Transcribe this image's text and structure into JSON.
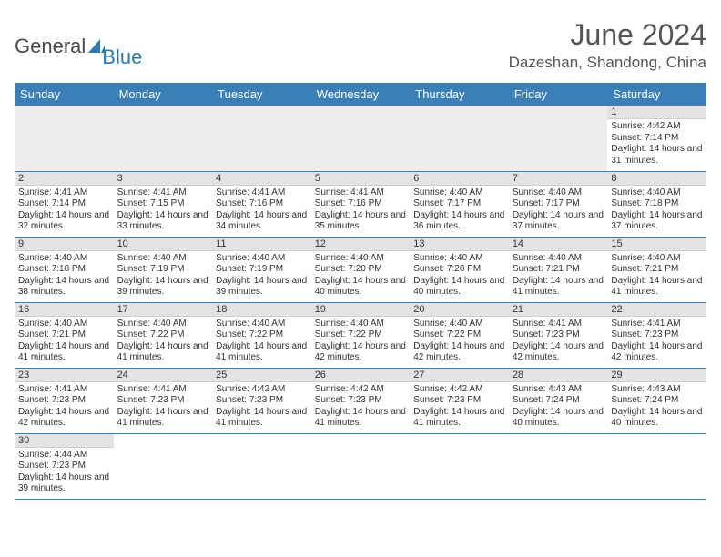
{
  "logo": {
    "text1": "General",
    "text2": "Blue",
    "sail_color": "#2a7ab8"
  },
  "title": "June 2024",
  "location": "Dazeshan, Shandong, China",
  "weekdays": [
    "Sunday",
    "Monday",
    "Tuesday",
    "Wednesday",
    "Thursday",
    "Friday",
    "Saturday"
  ],
  "colors": {
    "header_bg": "#3b7fb8",
    "header_text": "#ffffff",
    "daynum_bg": "#e3e3e3",
    "row_border": "#3b7fb8",
    "title_color": "#555555"
  },
  "grid": [
    [
      null,
      null,
      null,
      null,
      null,
      null,
      {
        "n": "1",
        "sr": "4:42 AM",
        "ss": "7:14 PM",
        "dl": "14 hours and 31 minutes."
      }
    ],
    [
      {
        "n": "2",
        "sr": "4:41 AM",
        "ss": "7:14 PM",
        "dl": "14 hours and 32 minutes."
      },
      {
        "n": "3",
        "sr": "4:41 AM",
        "ss": "7:15 PM",
        "dl": "14 hours and 33 minutes."
      },
      {
        "n": "4",
        "sr": "4:41 AM",
        "ss": "7:16 PM",
        "dl": "14 hours and 34 minutes."
      },
      {
        "n": "5",
        "sr": "4:41 AM",
        "ss": "7:16 PM",
        "dl": "14 hours and 35 minutes."
      },
      {
        "n": "6",
        "sr": "4:40 AM",
        "ss": "7:17 PM",
        "dl": "14 hours and 36 minutes."
      },
      {
        "n": "7",
        "sr": "4:40 AM",
        "ss": "7:17 PM",
        "dl": "14 hours and 37 minutes."
      },
      {
        "n": "8",
        "sr": "4:40 AM",
        "ss": "7:18 PM",
        "dl": "14 hours and 37 minutes."
      }
    ],
    [
      {
        "n": "9",
        "sr": "4:40 AM",
        "ss": "7:18 PM",
        "dl": "14 hours and 38 minutes."
      },
      {
        "n": "10",
        "sr": "4:40 AM",
        "ss": "7:19 PM",
        "dl": "14 hours and 39 minutes."
      },
      {
        "n": "11",
        "sr": "4:40 AM",
        "ss": "7:19 PM",
        "dl": "14 hours and 39 minutes."
      },
      {
        "n": "12",
        "sr": "4:40 AM",
        "ss": "7:20 PM",
        "dl": "14 hours and 40 minutes."
      },
      {
        "n": "13",
        "sr": "4:40 AM",
        "ss": "7:20 PM",
        "dl": "14 hours and 40 minutes."
      },
      {
        "n": "14",
        "sr": "4:40 AM",
        "ss": "7:21 PM",
        "dl": "14 hours and 41 minutes."
      },
      {
        "n": "15",
        "sr": "4:40 AM",
        "ss": "7:21 PM",
        "dl": "14 hours and 41 minutes."
      }
    ],
    [
      {
        "n": "16",
        "sr": "4:40 AM",
        "ss": "7:21 PM",
        "dl": "14 hours and 41 minutes."
      },
      {
        "n": "17",
        "sr": "4:40 AM",
        "ss": "7:22 PM",
        "dl": "14 hours and 41 minutes."
      },
      {
        "n": "18",
        "sr": "4:40 AM",
        "ss": "7:22 PM",
        "dl": "14 hours and 41 minutes."
      },
      {
        "n": "19",
        "sr": "4:40 AM",
        "ss": "7:22 PM",
        "dl": "14 hours and 42 minutes."
      },
      {
        "n": "20",
        "sr": "4:40 AM",
        "ss": "7:22 PM",
        "dl": "14 hours and 42 minutes."
      },
      {
        "n": "21",
        "sr": "4:41 AM",
        "ss": "7:23 PM",
        "dl": "14 hours and 42 minutes."
      },
      {
        "n": "22",
        "sr": "4:41 AM",
        "ss": "7:23 PM",
        "dl": "14 hours and 42 minutes."
      }
    ],
    [
      {
        "n": "23",
        "sr": "4:41 AM",
        "ss": "7:23 PM",
        "dl": "14 hours and 42 minutes."
      },
      {
        "n": "24",
        "sr": "4:41 AM",
        "ss": "7:23 PM",
        "dl": "14 hours and 41 minutes."
      },
      {
        "n": "25",
        "sr": "4:42 AM",
        "ss": "7:23 PM",
        "dl": "14 hours and 41 minutes."
      },
      {
        "n": "26",
        "sr": "4:42 AM",
        "ss": "7:23 PM",
        "dl": "14 hours and 41 minutes."
      },
      {
        "n": "27",
        "sr": "4:42 AM",
        "ss": "7:23 PM",
        "dl": "14 hours and 41 minutes."
      },
      {
        "n": "28",
        "sr": "4:43 AM",
        "ss": "7:24 PM",
        "dl": "14 hours and 40 minutes."
      },
      {
        "n": "29",
        "sr": "4:43 AM",
        "ss": "7:24 PM",
        "dl": "14 hours and 40 minutes."
      }
    ],
    [
      {
        "n": "30",
        "sr": "4:44 AM",
        "ss": "7:23 PM",
        "dl": "14 hours and 39 minutes."
      },
      null,
      null,
      null,
      null,
      null,
      null
    ]
  ],
  "labels": {
    "sunrise": "Sunrise:",
    "sunset": "Sunset:",
    "daylight": "Daylight:"
  }
}
